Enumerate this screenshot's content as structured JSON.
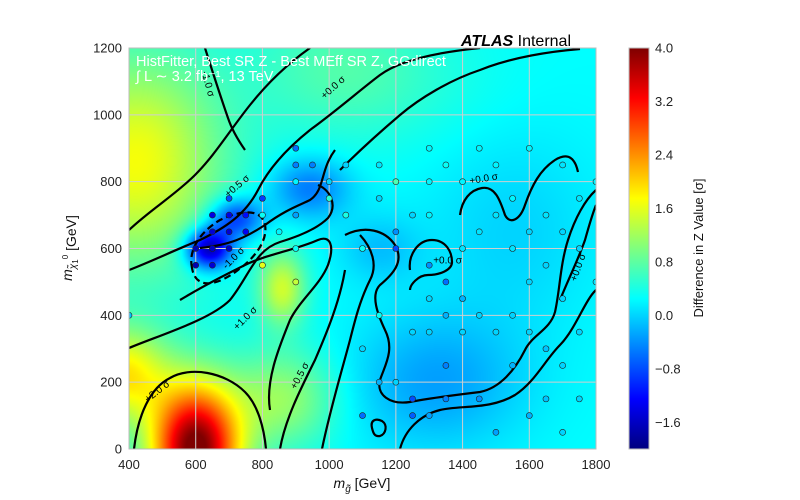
{
  "chart_data": {
    "type": "heatmap",
    "title_bold": "ATLAS",
    "title_rest": " Internal",
    "overlay_line1": "HistFitter, Best SR Z - Best MEff SR Z, GGdirect",
    "overlay_line2": "∫ L ∼ 3.2 fb⁻¹, 13 TeV",
    "xlabel_main": "m",
    "xlabel_sub": "g̃",
    "xlabel_unit": " [GeV]",
    "ylabel_main": "m",
    "ylabel_sub": "χ̃",
    "ylabel_sub2": "1",
    "ylabel_sup": "0",
    "ylabel_unit": " [GeV]",
    "colorbar_label": "Difference in Z Value [σ]",
    "xlim": [
      400,
      1800
    ],
    "ylim": [
      0,
      1200
    ],
    "zlim": [
      -2.0,
      4.0
    ],
    "x_ticks": [
      "400",
      "600",
      "800",
      "1000",
      "1200",
      "1400",
      "1600",
      "1800"
    ],
    "y_ticks": [
      "0",
      "200",
      "400",
      "600",
      "800",
      "1000",
      "1200"
    ],
    "colorbar_ticks": [
      "4.0",
      "3.2",
      "2.4",
      "1.6",
      "0.8",
      "0.0",
      "−0.8",
      "−1.6"
    ],
    "colorbar_tick_values": [
      4.0,
      3.2,
      2.4,
      1.6,
      0.8,
      0.0,
      -0.8,
      -1.6
    ],
    "grid": true,
    "colormap": [
      "#00007f",
      "#0000ff",
      "#007fff",
      "#00ffff",
      "#7fff7f",
      "#ffff00",
      "#ff7f00",
      "#ff0000",
      "#7f0000"
    ],
    "contour_labels": [
      {
        "text": "-1.0 σ",
        "x": 628,
        "y": 1090,
        "rot": 75
      },
      {
        "text": "+0.0 σ",
        "x": 1018,
        "y": 1075,
        "rot": -42
      },
      {
        "text": "+0.5 σ",
        "x": 730,
        "y": 780,
        "rot": -40
      },
      {
        "text": "-1.0 σ",
        "x": 720,
        "y": 565,
        "rot": -45
      },
      {
        "text": "+1.0 σ",
        "x": 755,
        "y": 385,
        "rot": -45
      },
      {
        "text": "+0.5 σ",
        "x": 920,
        "y": 215,
        "rot": -62
      },
      {
        "text": "+2.0 σ",
        "x": 490,
        "y": 165,
        "rot": -38
      },
      {
        "text": "+0.0 σ",
        "x": 1465,
        "y": 800,
        "rot": -10
      },
      {
        "text": "+0.0 σ",
        "x": 1355,
        "y": 555,
        "rot": 0
      },
      {
        "text": "+0.0 σ",
        "x": 1755,
        "y": 540,
        "rot": -70
      }
    ],
    "points": [
      {
        "x": 400,
        "y": 400,
        "z": -0.1
      },
      {
        "x": 600,
        "y": 600,
        "z": -1.7
      },
      {
        "x": 600,
        "y": 550,
        "z": -1.7
      },
      {
        "x": 650,
        "y": 550,
        "z": -1.5
      },
      {
        "x": 650,
        "y": 600,
        "z": -1.6
      },
      {
        "x": 650,
        "y": 650,
        "z": -1.5
      },
      {
        "x": 700,
        "y": 600,
        "z": -1.6
      },
      {
        "x": 700,
        "y": 650,
        "z": -1.5
      },
      {
        "x": 700,
        "y": 700,
        "z": -1.4
      },
      {
        "x": 750,
        "y": 650,
        "z": -1.3
      },
      {
        "x": 750,
        "y": 700,
        "z": -1.2
      },
      {
        "x": 700,
        "y": 750,
        "z": -0.8
      },
      {
        "x": 650,
        "y": 700,
        "z": -1.4
      },
      {
        "x": 800,
        "y": 550,
        "z": 1.6
      },
      {
        "x": 800,
        "y": 750,
        "z": -0.9
      },
      {
        "x": 800,
        "y": 700,
        "z": 0.3
      },
      {
        "x": 850,
        "y": 650,
        "z": 0.2
      },
      {
        "x": 900,
        "y": 500,
        "z": 1.4
      },
      {
        "x": 900,
        "y": 600,
        "z": 0.3
      },
      {
        "x": 900,
        "y": 700,
        "z": -0.3
      },
      {
        "x": 900,
        "y": 800,
        "z": 0.2
      },
      {
        "x": 900,
        "y": 850,
        "z": -0.5
      },
      {
        "x": 900,
        "y": 900,
        "z": -0.6
      },
      {
        "x": 950,
        "y": 850,
        "z": -0.5
      },
      {
        "x": 1000,
        "y": 800,
        "z": 0.0
      },
      {
        "x": 1000,
        "y": 750,
        "z": 0.5
      },
      {
        "x": 1050,
        "y": 700,
        "z": 0.4
      },
      {
        "x": 1050,
        "y": 850,
        "z": 0.0
      },
      {
        "x": 1100,
        "y": 300,
        "z": 0.0
      },
      {
        "x": 1100,
        "y": 100,
        "z": -0.6
      },
      {
        "x": 1100,
        "y": 600,
        "z": 0.3
      },
      {
        "x": 1150,
        "y": 750,
        "z": 0.0
      },
      {
        "x": 1150,
        "y": 850,
        "z": 0.1
      },
      {
        "x": 1150,
        "y": 400,
        "z": 0.3
      },
      {
        "x": 1150,
        "y": 200,
        "z": -0.2
      },
      {
        "x": 1200,
        "y": 650,
        "z": -0.4
      },
      {
        "x": 1200,
        "y": 600,
        "z": -0.8
      },
      {
        "x": 1200,
        "y": 800,
        "z": 0.7
      },
      {
        "x": 1200,
        "y": 200,
        "z": 0.0
      },
      {
        "x": 1250,
        "y": 350,
        "z": 0.0
      },
      {
        "x": 1250,
        "y": 150,
        "z": -0.8
      },
      {
        "x": 1250,
        "y": 100,
        "z": -0.7
      },
      {
        "x": 1250,
        "y": 700,
        "z": 0.0
      },
      {
        "x": 1300,
        "y": 900,
        "z": 0.2
      },
      {
        "x": 1300,
        "y": 800,
        "z": 0.2
      },
      {
        "x": 1300,
        "y": 700,
        "z": 0.2
      },
      {
        "x": 1300,
        "y": 550,
        "z": -0.4
      },
      {
        "x": 1300,
        "y": 450,
        "z": 0.0
      },
      {
        "x": 1300,
        "y": 350,
        "z": 0.0
      },
      {
        "x": 1300,
        "y": 100,
        "z": -0.3
      },
      {
        "x": 1350,
        "y": 850,
        "z": 0.3
      },
      {
        "x": 1350,
        "y": 500,
        "z": -0.6
      },
      {
        "x": 1350,
        "y": 400,
        "z": -0.2
      },
      {
        "x": 1350,
        "y": 250,
        "z": -0.5
      },
      {
        "x": 1350,
        "y": 150,
        "z": -0.5
      },
      {
        "x": 1400,
        "y": 800,
        "z": 0.2
      },
      {
        "x": 1400,
        "y": 600,
        "z": 0.1
      },
      {
        "x": 1400,
        "y": 450,
        "z": -0.2
      },
      {
        "x": 1400,
        "y": 350,
        "z": 0.0
      },
      {
        "x": 1450,
        "y": 900,
        "z": 0.2
      },
      {
        "x": 1450,
        "y": 650,
        "z": 0.1
      },
      {
        "x": 1450,
        "y": 400,
        "z": 0.0
      },
      {
        "x": 1450,
        "y": 150,
        "z": -0.4
      },
      {
        "x": 1500,
        "y": 850,
        "z": 0.2
      },
      {
        "x": 1500,
        "y": 700,
        "z": 0.1
      },
      {
        "x": 1500,
        "y": 350,
        "z": 0.0
      },
      {
        "x": 1500,
        "y": 50,
        "z": -0.3
      },
      {
        "x": 1550,
        "y": 750,
        "z": 0.2
      },
      {
        "x": 1550,
        "y": 600,
        "z": 0.1
      },
      {
        "x": 1550,
        "y": 400,
        "z": 0.0
      },
      {
        "x": 1550,
        "y": 250,
        "z": -0.2
      },
      {
        "x": 1600,
        "y": 900,
        "z": 0.2
      },
      {
        "x": 1600,
        "y": 650,
        "z": 0.0
      },
      {
        "x": 1600,
        "y": 500,
        "z": 0.0
      },
      {
        "x": 1600,
        "y": 350,
        "z": 0.0
      },
      {
        "x": 1600,
        "y": 100,
        "z": -0.2
      },
      {
        "x": 1650,
        "y": 700,
        "z": 0.1
      },
      {
        "x": 1650,
        "y": 550,
        "z": 0.0
      },
      {
        "x": 1650,
        "y": 300,
        "z": -0.1
      },
      {
        "x": 1650,
        "y": 150,
        "z": -0.1
      },
      {
        "x": 1700,
        "y": 850,
        "z": 0.1
      },
      {
        "x": 1700,
        "y": 650,
        "z": 0.0
      },
      {
        "x": 1700,
        "y": 450,
        "z": 0.0
      },
      {
        "x": 1700,
        "y": 250,
        "z": 0.0
      },
      {
        "x": 1700,
        "y": 50,
        "z": 0.0
      },
      {
        "x": 1750,
        "y": 750,
        "z": 0.1
      },
      {
        "x": 1750,
        "y": 600,
        "z": 0.0
      },
      {
        "x": 1750,
        "y": 350,
        "z": 0.0
      },
      {
        "x": 1750,
        "y": 150,
        "z": 0.0
      },
      {
        "x": 1800,
        "y": 800,
        "z": 0.2
      },
      {
        "x": 1800,
        "y": 500,
        "z": 0.1
      }
    ]
  }
}
